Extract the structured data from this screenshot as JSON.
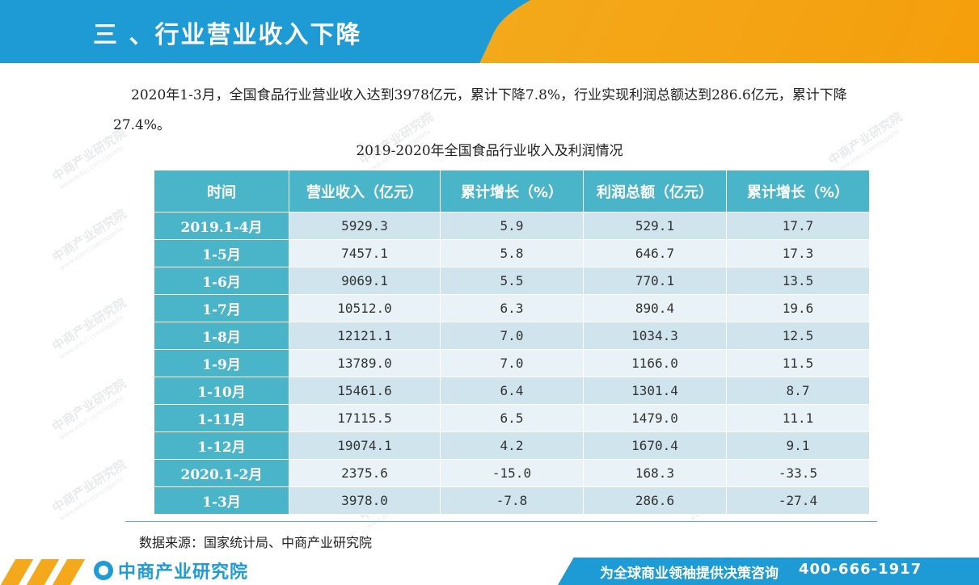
{
  "header": {
    "title": "三 、行业营业收入下降"
  },
  "intro": "2020年1-3月，全国食品行业营业收入达到3978亿元，累计下降7.8%，行业实现利润总额达到286.6亿元，累计下降27.4%。",
  "table": {
    "title": "2019-2020年全国食品行业收入及利润情况",
    "headers": [
      "时间",
      "营业收入（亿元）",
      "累计增长（%）",
      "利润总额（亿元）",
      "累计增长（%）"
    ],
    "rows": [
      [
        "2019.1-4月",
        "5929.3",
        "5.9",
        "529.1",
        "17.7"
      ],
      [
        "1-5月",
        "7457.1",
        "5.8",
        "646.7",
        "17.3"
      ],
      [
        "1-6月",
        "9069.1",
        "5.5",
        "770.1",
        "13.5"
      ],
      [
        "1-7月",
        "10512.0",
        "6.3",
        "890.4",
        "19.6"
      ],
      [
        "1-8月",
        "12121.1",
        "7.0",
        "1034.3",
        "12.5"
      ],
      [
        "1-9月",
        "13789.0",
        "7.0",
        "1166.0",
        "11.5"
      ],
      [
        "1-10月",
        "15461.6",
        "6.4",
        "1301.4",
        "8.7"
      ],
      [
        "1-11月",
        "17115.5",
        "6.5",
        "1479.0",
        "11.1"
      ],
      [
        "1-12月",
        "19074.1",
        "4.2",
        "1670.4",
        "9.1"
      ],
      [
        "2020.1-2月",
        "2375.6",
        "-15.0",
        "168.3",
        "-33.5"
      ],
      [
        "1-3月",
        "3978.0",
        "-7.8",
        "286.6",
        "-27.4"
      ]
    ]
  },
  "source": "数据来源：国家统计局、中商产业研究院",
  "footer": {
    "logo": "中商产业研究院",
    "slogan": "为全球商业领袖提供决策咨询",
    "phone": "400-666-1917"
  },
  "watermark": {
    "name": "中商产业研究院",
    "url": "www.askci.com/reports"
  },
  "colors": {
    "header_blue": "#1e9ad4",
    "accent_orange": "#f3a91b",
    "table_head": "#4ab4c9",
    "row_dark": "#cfe4ed",
    "row_light": "#e9f2f6"
  }
}
